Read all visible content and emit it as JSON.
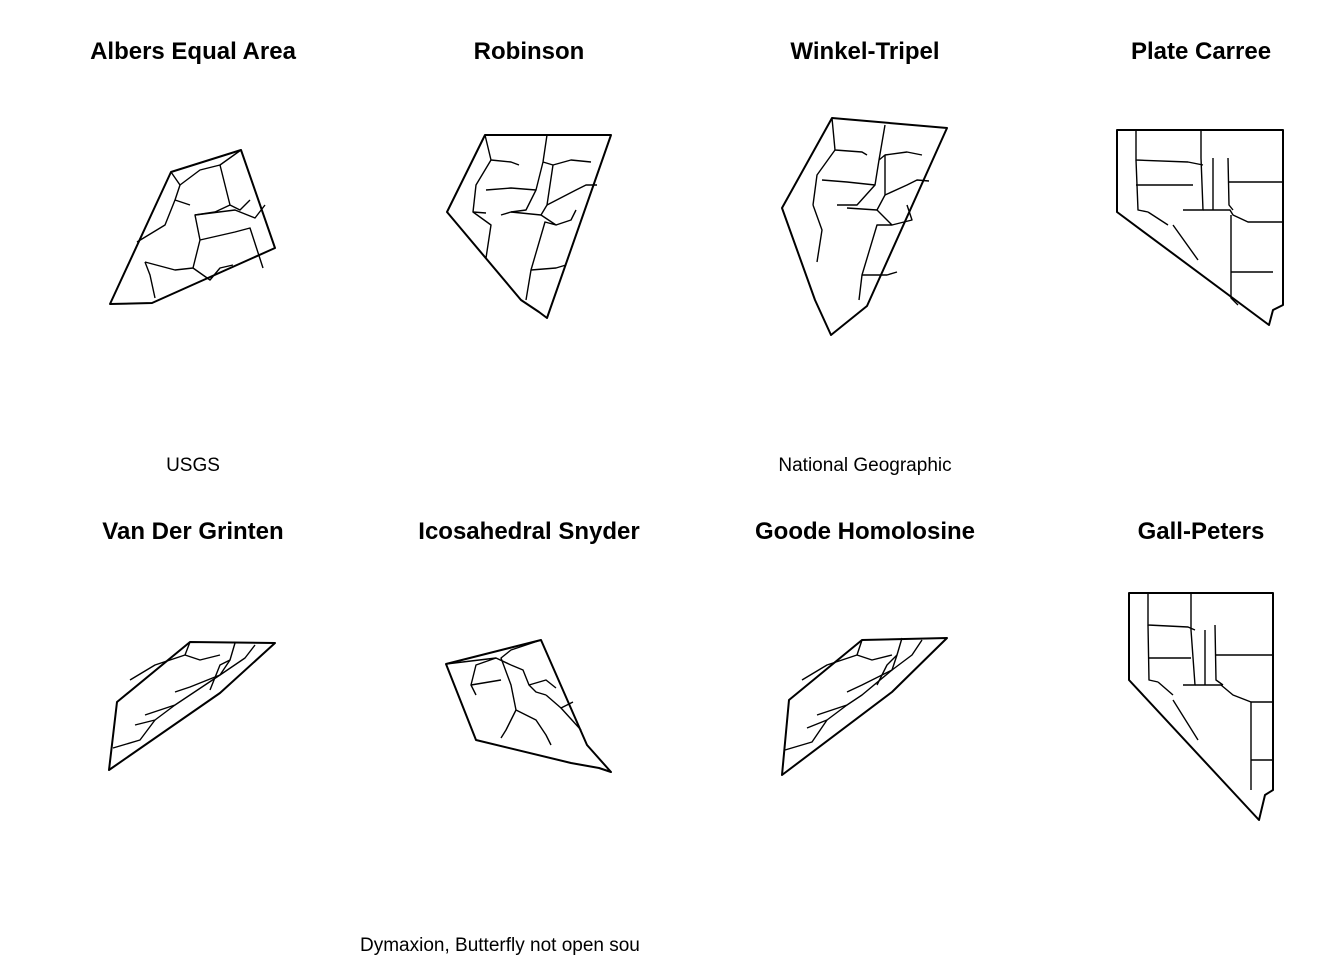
{
  "panels": [
    {
      "title": "Albers Equal Area",
      "subtitle": "USGS"
    },
    {
      "title": "Robinson",
      "subtitle": ""
    },
    {
      "title": "Winkel-Tripel",
      "subtitle": "National Geographic"
    },
    {
      "title": "Plate Carree",
      "subtitle": ""
    },
    {
      "title": "Van Der Grinten",
      "subtitle": ""
    },
    {
      "title": "Icosahedral Snyder",
      "subtitle": ""
    },
    {
      "title": "Goode Homolosine",
      "subtitle": ""
    },
    {
      "title": "Gall-Peters",
      "subtitle": ""
    }
  ],
  "footer_note": "Dymaxion, Butterfly not open sou"
}
